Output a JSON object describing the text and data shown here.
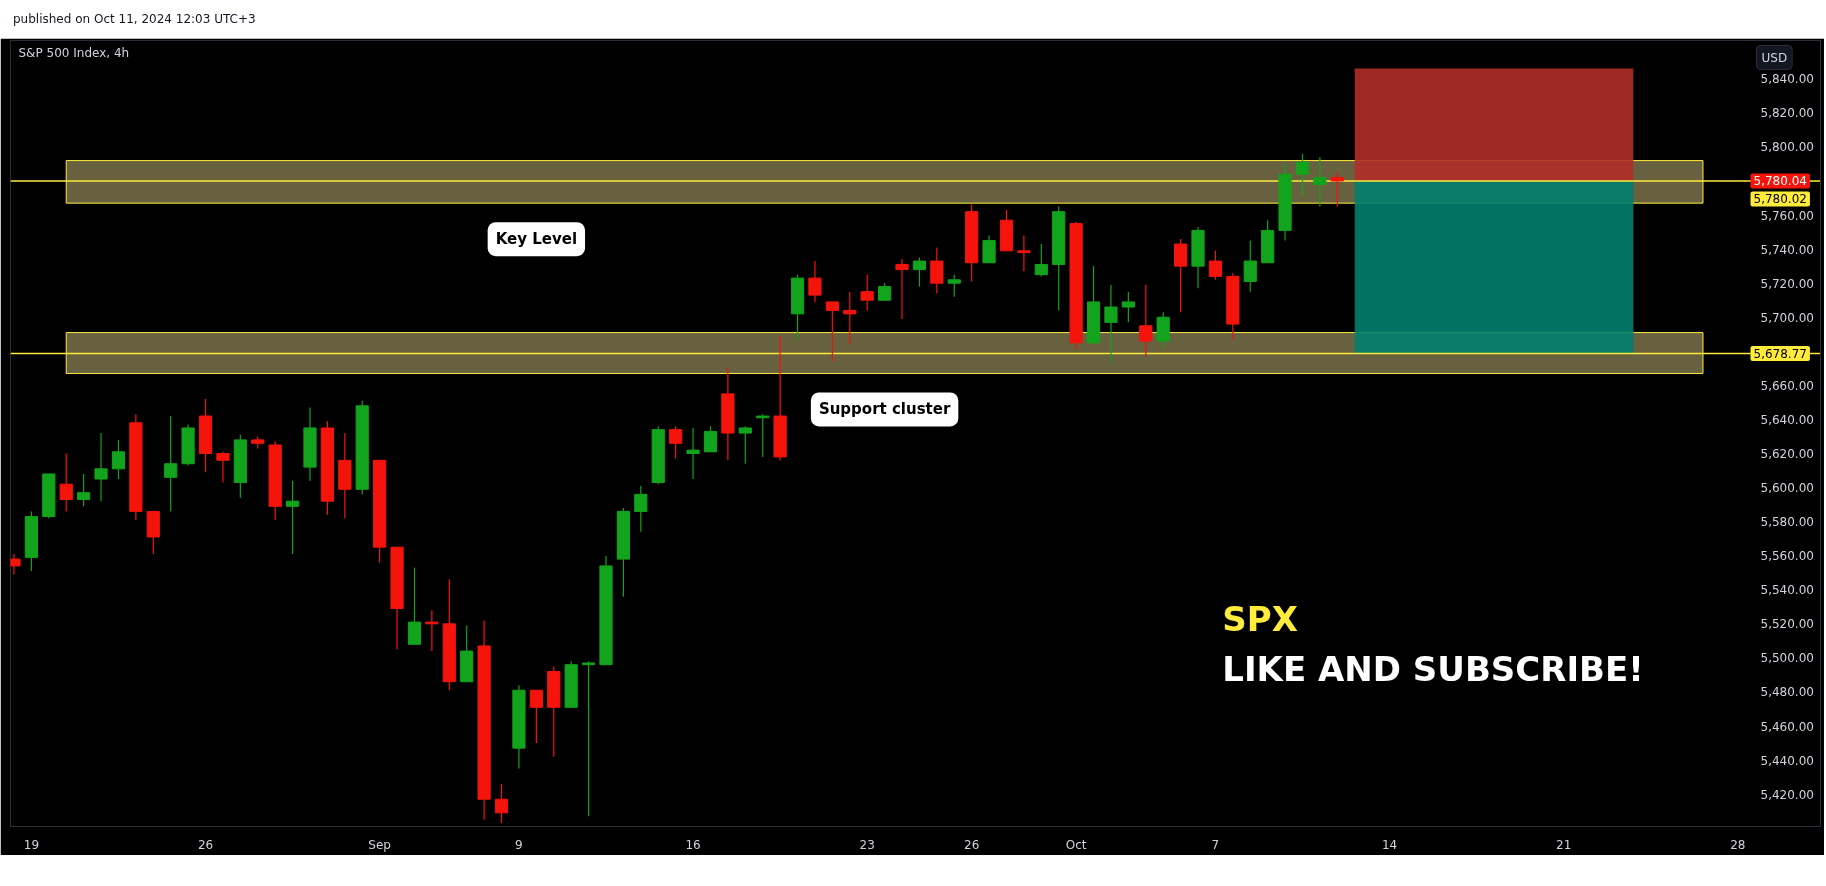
{
  "chart_data": {
    "type": "candlestick",
    "title": "S&P 500 Index, 4h",
    "ylabel": "USD",
    "annotations": [
      "published on Oct 11, 2024 12:03 UTC+3",
      "SPX",
      "LIKE AND SUBSCRIBE!",
      {
        "text": "5,780.04",
        "y": 5780.04
      }
    ],
    "categories": [
      null,
      "19",
      null,
      null,
      null,
      null,
      null,
      null,
      null,
      null,
      null,
      "26",
      null,
      null,
      null,
      null,
      null,
      null,
      null,
      null,
      null,
      "Sep",
      null,
      null,
      null,
      null,
      null,
      null,
      null,
      "9",
      null,
      null,
      null,
      null,
      null,
      null,
      null,
      null,
      null,
      "16",
      null,
      null,
      null,
      null,
      null,
      null,
      null,
      null,
      null,
      "23",
      null,
      null,
      null,
      null,
      null,
      "26",
      null,
      null,
      null,
      null,
      null,
      "Oct",
      null,
      null,
      null,
      null,
      null,
      null,
      null,
      "7",
      null,
      null,
      null,
      null,
      null,
      null,
      null,
      null,
      null,
      "14",
      null,
      null,
      null,
      null,
      null,
      null,
      null,
      null,
      null,
      "21",
      null,
      null,
      null,
      null,
      null,
      null,
      null,
      null,
      null,
      "28"
    ],
    "ohlc": [
      [
        5558,
        5561,
        5549,
        5554
      ],
      [
        5559,
        5586,
        5551,
        5583
      ],
      [
        5583,
        5608,
        5582,
        5608
      ],
      [
        5602,
        5620,
        5586,
        5593
      ],
      [
        5593,
        5608,
        5589,
        5597
      ],
      [
        5605,
        5632,
        5592,
        5611
      ],
      [
        5611,
        5628,
        5605,
        5621
      ],
      [
        5638,
        5643,
        5581,
        5586
      ],
      [
        5586,
        5586,
        5561,
        5571
      ],
      [
        5606,
        5642,
        5586,
        5614
      ],
      [
        5614,
        5637,
        5613,
        5635
      ],
      [
        5642,
        5652,
        5609,
        5620
      ],
      [
        5620,
        5621,
        5603,
        5616
      ],
      [
        5603,
        5631,
        5594,
        5628
      ],
      [
        5628,
        5630,
        5623,
        5626
      ],
      [
        5625,
        5627,
        5581,
        5589
      ],
      [
        5589,
        5604,
        5561,
        5592
      ],
      [
        5612,
        5647,
        5604,
        5635
      ],
      [
        5635,
        5639,
        5584,
        5592
      ],
      [
        5616,
        5632,
        5582,
        5599
      ],
      [
        5599,
        5651,
        5596,
        5648
      ],
      [
        5616,
        5616,
        5556,
        5565
      ],
      [
        5565,
        5565,
        5505,
        5529
      ],
      [
        5508,
        5553,
        5508,
        5521
      ],
      [
        5521,
        5528,
        5504,
        5520
      ],
      [
        5520,
        5546,
        5481,
        5486
      ],
      [
        5486,
        5519,
        5486,
        5504
      ],
      [
        5507,
        5522,
        5405,
        5417
      ],
      [
        5417,
        5426,
        5403,
        5409
      ],
      [
        5447,
        5484,
        5435,
        5481
      ],
      [
        5481,
        5481,
        5450,
        5471
      ],
      [
        5492,
        5495,
        5442,
        5471
      ],
      [
        5471,
        5498,
        5471,
        5496
      ],
      [
        5496,
        5498,
        5407,
        5497
      ],
      [
        5496,
        5560,
        5496,
        5554
      ],
      [
        5558,
        5588,
        5536,
        5586
      ],
      [
        5586,
        5601,
        5574,
        5596
      ],
      [
        5603,
        5636,
        5602,
        5634
      ],
      [
        5634,
        5636,
        5617,
        5626
      ],
      [
        5620,
        5635,
        5605,
        5622
      ],
      [
        5621,
        5636,
        5621,
        5633
      ],
      [
        5655,
        5670,
        5616,
        5632
      ],
      [
        5632,
        5636,
        5614,
        5635
      ],
      [
        5641,
        5643,
        5618,
        5642
      ],
      [
        5642,
        5689,
        5616,
        5618
      ],
      [
        5702,
        5725,
        5687,
        5723
      ],
      [
        5723,
        5733,
        5709,
        5713
      ],
      [
        5709,
        5709,
        5674,
        5704
      ],
      [
        5704,
        5715,
        5684,
        5702
      ],
      [
        5715,
        5725,
        5704,
        5710
      ],
      [
        5710,
        5720,
        5710,
        5718
      ],
      [
        5731,
        5734,
        5699,
        5728
      ],
      [
        5728,
        5735,
        5718,
        5733
      ],
      [
        5733,
        5741,
        5714,
        5720
      ],
      [
        5720,
        5725,
        5712,
        5722
      ],
      [
        5762,
        5766,
        5721,
        5732
      ],
      [
        5732,
        5748,
        5732,
        5745
      ],
      [
        5757,
        5763,
        5739,
        5739
      ],
      [
        5739,
        5748,
        5727,
        5738
      ],
      [
        5725,
        5743,
        5724,
        5731
      ],
      [
        5731,
        5765,
        5704,
        5762
      ],
      [
        5755,
        5756,
        5681,
        5685
      ],
      [
        5685,
        5730,
        5684,
        5709
      ],
      [
        5697,
        5719,
        5674,
        5706
      ],
      [
        5706,
        5715,
        5697,
        5709
      ],
      [
        5695,
        5719,
        5677,
        5686
      ],
      [
        5686,
        5703,
        5682,
        5700
      ],
      [
        5743,
        5746,
        5703,
        5730
      ],
      [
        5730,
        5753,
        5717,
        5751
      ],
      [
        5733,
        5739,
        5722,
        5724
      ],
      [
        5724,
        5726,
        5687,
        5696
      ],
      [
        5721,
        5745,
        5715,
        5733
      ],
      [
        5732,
        5757,
        5732,
        5751
      ],
      [
        5751,
        5790,
        5745,
        5784
      ],
      [
        5784,
        5796,
        5771,
        5791
      ],
      [
        5778,
        5794,
        5765,
        5782
      ],
      [
        5782,
        5785,
        5765,
        5780.04
      ],
      null,
      null,
      null,
      null,
      null,
      null,
      null,
      null,
      null,
      null,
      null,
      null,
      null,
      null,
      null,
      null,
      null,
      null,
      null,
      null,
      null,
      null,
      null
    ],
    "colors": [
      "#f5140c",
      "#12a41c",
      "#12a41c",
      "#f5140c",
      "#12a41c",
      "#12a41c",
      "#12a41c",
      "#f5140c",
      "#f5140c",
      "#12a41c",
      "#12a41c",
      "#f5140c",
      "#f5140c",
      "#12a41c",
      "#f5140c",
      "#f5140c",
      "#12a41c",
      "#12a41c",
      "#f5140c",
      "#f5140c",
      "#12a41c",
      "#f5140c",
      "#f5140c",
      "#12a41c",
      "#f5140c",
      "#f5140c",
      "#12a41c",
      "#f5140c",
      "#f5140c",
      "#12a41c",
      "#f5140c",
      "#f5140c",
      "#12a41c",
      "#12a41c",
      "#12a41c",
      "#12a41c",
      "#12a41c",
      "#12a41c",
      "#f5140c",
      "#12a41c",
      "#12a41c",
      "#f5140c",
      "#12a41c",
      "#12a41c",
      "#f5140c",
      "#12a41c",
      "#f5140c",
      "#f5140c",
      "#f5140c",
      "#f5140c",
      "#12a41c",
      "#f5140c",
      "#12a41c",
      "#f5140c",
      "#12a41c",
      "#f5140c",
      "#12a41c",
      "#f5140c",
      "#f5140c",
      "#12a41c",
      "#12a41c",
      "#f5140c",
      "#12a41c",
      "#12a41c",
      "#12a41c",
      "#f5140c",
      "#12a41c",
      "#f5140c",
      "#12a41c",
      "#f5140c",
      "#f5140c",
      "#12a41c",
      "#12a41c",
      "#12a41c",
      "#12a41c",
      "#12a41c",
      "#f5140c",
      null,
      null,
      null,
      null,
      null,
      null,
      null,
      null,
      null,
      null,
      null,
      null,
      null,
      null,
      null,
      null,
      null,
      null,
      null,
      null,
      null,
      null,
      null
    ],
    "ylim": [
      5401,
      5862.5
    ],
    "yticks": [
      {
        "value": 5420,
        "label": "5,420.00"
      },
      {
        "value": 5440,
        "label": "5,440.00"
      },
      {
        "value": 5460,
        "label": "5,460.00"
      },
      {
        "value": 5480,
        "label": "5,480.00"
      },
      {
        "value": 5500,
        "label": "5,500.00"
      },
      {
        "value": 5520,
        "label": "5,520.00"
      },
      {
        "value": 5540,
        "label": "5,540.00"
      },
      {
        "value": 5560,
        "label": "5,560.00"
      },
      {
        "value": 5580,
        "label": "5,580.00"
      },
      {
        "value": 5600,
        "label": "5,600.00"
      },
      {
        "value": 5620,
        "label": "5,620.00"
      },
      {
        "value": 5640,
        "label": "5,640.00"
      },
      {
        "value": 5660,
        "label": "5,660.00"
      },
      {
        "value": 5700,
        "label": "5,700.00"
      },
      {
        "value": 5720,
        "label": "5,720.00"
      },
      {
        "value": 5740,
        "label": "5,740.00"
      },
      {
        "value": 5760,
        "label": "5,760.00"
      },
      {
        "value": 5800,
        "label": "5,800.00"
      },
      {
        "value": 5820,
        "label": "5,820.00"
      },
      {
        "value": 5840,
        "label": "5,840.00"
      }
    ],
    "bands": [
      {
        "axis": "y",
        "from": 5767,
        "to": 5792,
        "label": "Key Level",
        "color": "#67613f"
      },
      {
        "axis": "y",
        "from": 5667,
        "to": 5691,
        "label": "Support cluster",
        "color": "#67613f"
      },
      {
        "axis": "y",
        "from": 5780.02,
        "to": 5846,
        "color": "#b02f29"
      },
      {
        "axis": "y",
        "from": 5678.77,
        "to": 5780.02,
        "color": "#00806f"
      }
    ],
    "ref_lines": [
      {
        "axis": "y",
        "value": 5780.02,
        "label": "5,780.02",
        "color": "#ffeb3b"
      },
      {
        "axis": "y",
        "value": 5678.77,
        "label": "5,678.77",
        "color": "#ffeb3b"
      }
    ]
  }
}
